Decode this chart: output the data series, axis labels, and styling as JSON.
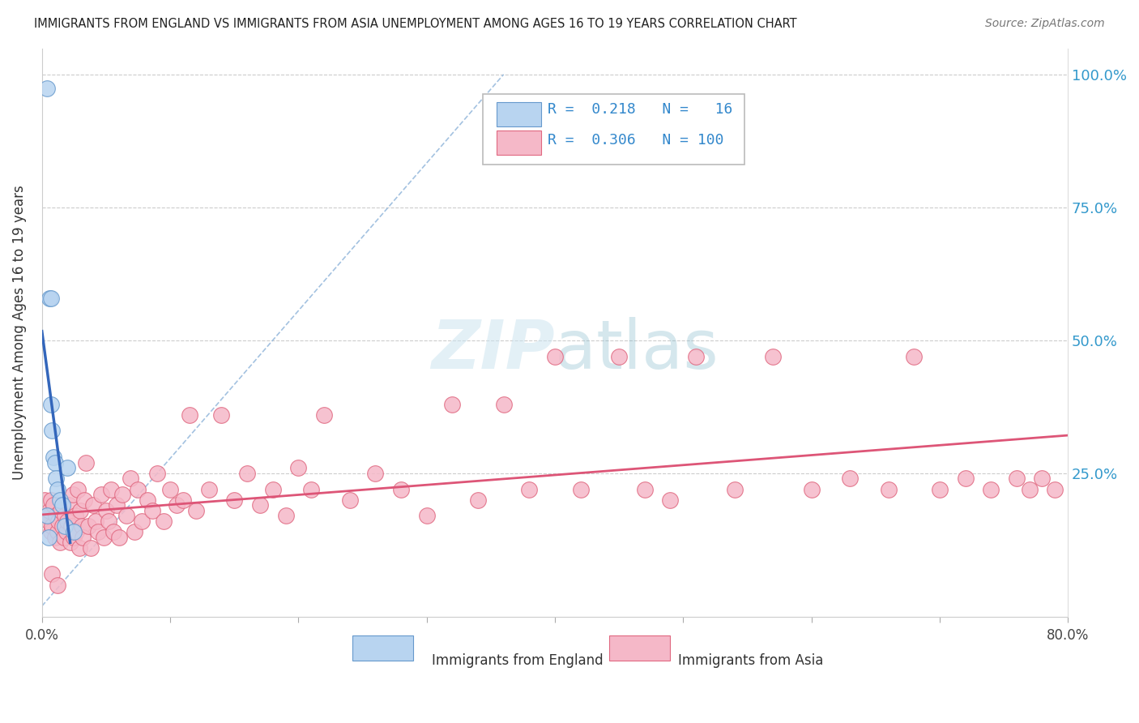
{
  "title": "IMMIGRANTS FROM ENGLAND VS IMMIGRANTS FROM ASIA UNEMPLOYMENT AMONG AGES 16 TO 19 YEARS CORRELATION CHART",
  "source": "Source: ZipAtlas.com",
  "ylabel": "Unemployment Among Ages 16 to 19 years",
  "xlim": [
    0.0,
    0.8
  ],
  "ylim": [
    -0.02,
    1.05
  ],
  "xticks": [
    0.0,
    0.1,
    0.2,
    0.3,
    0.4,
    0.5,
    0.6,
    0.7,
    0.8
  ],
  "ytick_labels_right": [
    "100.0%",
    "75.0%",
    "50.0%",
    "25.0%"
  ],
  "ytick_positions_right": [
    1.0,
    0.75,
    0.5,
    0.25
  ],
  "england_R": "0.218",
  "england_N": "16",
  "asia_R": "0.306",
  "asia_N": "100",
  "england_color": "#b8d4f0",
  "england_edge_color": "#6699cc",
  "asia_color": "#f5b8c8",
  "asia_edge_color": "#e06880",
  "england_line_color": "#3366bb",
  "asia_line_color": "#dd5577",
  "dash_line_color": "#99bbdd",
  "england_scatter_x": [
    0.004,
    0.004,
    0.005,
    0.006,
    0.007,
    0.007,
    0.008,
    0.009,
    0.01,
    0.011,
    0.012,
    0.014,
    0.016,
    0.018,
    0.02,
    0.025
  ],
  "england_scatter_y": [
    0.975,
    0.17,
    0.13,
    0.58,
    0.58,
    0.38,
    0.33,
    0.28,
    0.27,
    0.24,
    0.22,
    0.2,
    0.19,
    0.15,
    0.26,
    0.14
  ],
  "asia_scatter_x": [
    0.002,
    0.004,
    0.005,
    0.006,
    0.007,
    0.007,
    0.008,
    0.009,
    0.01,
    0.011,
    0.012,
    0.013,
    0.014,
    0.015,
    0.016,
    0.017,
    0.018,
    0.019,
    0.02,
    0.021,
    0.022,
    0.023,
    0.024,
    0.025,
    0.026,
    0.027,
    0.028,
    0.029,
    0.03,
    0.031,
    0.032,
    0.033,
    0.034,
    0.036,
    0.038,
    0.04,
    0.042,
    0.044,
    0.046,
    0.048,
    0.05,
    0.052,
    0.054,
    0.056,
    0.058,
    0.06,
    0.063,
    0.066,
    0.069,
    0.072,
    0.075,
    0.078,
    0.082,
    0.086,
    0.09,
    0.095,
    0.1,
    0.105,
    0.11,
    0.115,
    0.12,
    0.13,
    0.14,
    0.15,
    0.16,
    0.17,
    0.18,
    0.19,
    0.2,
    0.21,
    0.22,
    0.24,
    0.26,
    0.28,
    0.3,
    0.32,
    0.34,
    0.36,
    0.38,
    0.4,
    0.42,
    0.45,
    0.47,
    0.49,
    0.51,
    0.54,
    0.57,
    0.6,
    0.63,
    0.66,
    0.68,
    0.7,
    0.72,
    0.74,
    0.76,
    0.77,
    0.78,
    0.79,
    0.008,
    0.012
  ],
  "asia_scatter_y": [
    0.2,
    0.17,
    0.16,
    0.18,
    0.14,
    0.2,
    0.15,
    0.19,
    0.13,
    0.17,
    0.14,
    0.16,
    0.12,
    0.18,
    0.15,
    0.13,
    0.17,
    0.14,
    0.16,
    0.19,
    0.12,
    0.15,
    0.21,
    0.13,
    0.17,
    0.14,
    0.22,
    0.11,
    0.18,
    0.15,
    0.13,
    0.2,
    0.27,
    0.15,
    0.11,
    0.19,
    0.16,
    0.14,
    0.21,
    0.13,
    0.18,
    0.16,
    0.22,
    0.14,
    0.19,
    0.13,
    0.21,
    0.17,
    0.24,
    0.14,
    0.22,
    0.16,
    0.2,
    0.18,
    0.25,
    0.16,
    0.22,
    0.19,
    0.2,
    0.36,
    0.18,
    0.22,
    0.36,
    0.2,
    0.25,
    0.19,
    0.22,
    0.17,
    0.26,
    0.22,
    0.36,
    0.2,
    0.25,
    0.22,
    0.17,
    0.38,
    0.2,
    0.38,
    0.22,
    0.47,
    0.22,
    0.47,
    0.22,
    0.2,
    0.47,
    0.22,
    0.47,
    0.22,
    0.24,
    0.22,
    0.47,
    0.22,
    0.24,
    0.22,
    0.24,
    0.22,
    0.24,
    0.22,
    0.06,
    0.04
  ]
}
